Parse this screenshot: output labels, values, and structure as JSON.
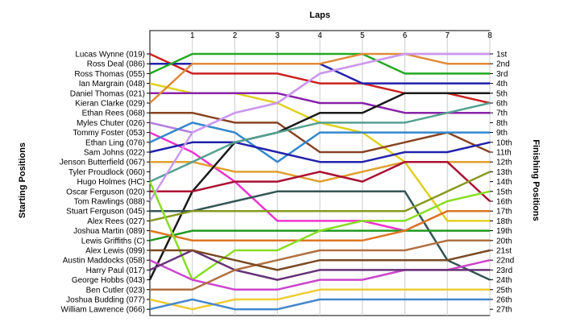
{
  "chart_data": {
    "type": "line",
    "title": "",
    "xlabel": "Laps",
    "y_left_label": "Starting Positions",
    "y_right_label": "Finishing Positions",
    "x": [
      0,
      1,
      2,
      3,
      4,
      5,
      6,
      7,
      8
    ],
    "x_tick_labels": [
      "1",
      "2",
      "3",
      "4",
      "5",
      "6",
      "7",
      "8"
    ],
    "ylim": [
      1,
      27
    ],
    "y_inverted": true,
    "grid": "vertical",
    "starting_labels": [
      "Lucas Wynne (019)",
      "Ross Deal (086)",
      "Ross Thomas (055)",
      "Ian Margrain (048)",
      "Daniel Thomas (021)",
      "Kieran Clarke (029)",
      "Ethan Rees (068)",
      "Myles Chuter (026)",
      "Tommy Foster (053)",
      "Ethan Ling (076)",
      "Sam Johns (022)",
      "Jenson Butterfield (067)",
      "Tyler Proudlock (060)",
      "Hugo Holmes (HC)",
      "Oscar Ferguson (020)",
      "Tom Rawlings (088)",
      "Stuart Ferguson (045)",
      "Alex Rees (027)",
      "Joshua Martin (089)",
      "Lewis Griffiths (C)",
      "Alex Lewis (099)",
      "Austin Maddocks (058)",
      "Harry Paul (017)",
      "George Hobbs (043)",
      "Ben Cutler (023)",
      "Joshua Budding (077)",
      "William Lawrence (066)"
    ],
    "finishing_labels": [
      "1st",
      "2nd",
      "3rd",
      "4th",
      "5th",
      "6th",
      "7th",
      "8th",
      "9th",
      "10th",
      "11th",
      "12th",
      "13th",
      "14th",
      "15th",
      "16th",
      "17th",
      "18th",
      "19th",
      "20th",
      "21st",
      "22nd",
      "23rd",
      "24th",
      "25th",
      "26th",
      "27th"
    ],
    "series": [
      {
        "color": "#cc2222",
        "values": [
          1,
          3,
          3,
          3,
          4,
          4,
          5,
          5,
          6
        ]
      },
      {
        "color": "#2222aa",
        "values": [
          2,
          2,
          2,
          2,
          2,
          4,
          4,
          4,
          4
        ]
      },
      {
        "color": "#22aa22",
        "values": [
          3,
          1,
          1,
          1,
          1,
          1,
          3,
          3,
          3
        ]
      },
      {
        "color": "#e0d020",
        "values": [
          4,
          5,
          5,
          6,
          8,
          9,
          12,
          18,
          18
        ]
      },
      {
        "color": "#8822aa",
        "values": [
          5,
          5,
          5,
          5,
          6,
          6,
          7,
          7,
          7
        ]
      },
      {
        "color": "#e08a3a",
        "values": [
          6,
          2,
          2,
          2,
          2,
          1,
          1,
          2,
          2
        ]
      },
      {
        "color": "#884422",
        "values": [
          7,
          7,
          8,
          8,
          11,
          11,
          10,
          9,
          11
        ]
      },
      {
        "color": "#b07fdb",
        "values": [
          8,
          9,
          7,
          6,
          3,
          2,
          1,
          1,
          1
        ]
      },
      {
        "color": "#ee33cc",
        "values": [
          9,
          11,
          14,
          18,
          18,
          18,
          19,
          17,
          17
        ]
      },
      {
        "color": "#3388cc",
        "values": [
          10,
          8,
          9,
          12,
          9,
          9,
          9,
          9,
          9
        ]
      },
      {
        "color": "#2222aa",
        "values": [
          11,
          10,
          10,
          11,
          12,
          12,
          11,
          11,
          10
        ]
      },
      {
        "color": "#e0a030",
        "values": [
          12,
          12,
          13,
          13,
          14,
          13,
          12,
          12,
          12
        ]
      },
      {
        "color": "#1a1a1a",
        "values": [
          24,
          15,
          10,
          9,
          7,
          7,
          5,
          5,
          5
        ]
      },
      {
        "color": "#55a090",
        "values": [
          14,
          12,
          10,
          9,
          8,
          8,
          8,
          7,
          6
        ]
      },
      {
        "color": "#aa1133",
        "values": [
          15,
          15,
          14,
          14,
          13,
          14,
          12,
          12,
          16
        ]
      },
      {
        "color": "#cc99ee",
        "values": [
          16,
          9,
          7,
          6,
          3,
          2,
          1,
          1,
          1
        ]
      },
      {
        "color": "#335555",
        "values": [
          17,
          17,
          16,
          15,
          15,
          15,
          15,
          22,
          24
        ]
      },
      {
        "color": "#889922",
        "values": [
          18,
          17,
          17,
          17,
          17,
          17,
          17,
          15,
          13
        ]
      },
      {
        "color": "#229922",
        "values": [
          20,
          19,
          19,
          19,
          19,
          19,
          19,
          19,
          19
        ]
      },
      {
        "color": "#dd7722",
        "values": [
          19,
          20,
          20,
          20,
          20,
          20,
          19,
          17,
          17
        ]
      },
      {
        "color": "#88dd22",
        "values": [
          14,
          24,
          21,
          21,
          19,
          18,
          18,
          16,
          15
        ]
      },
      {
        "color": "#cc44cc",
        "values": [
          22,
          24,
          25,
          25,
          24,
          24,
          23,
          23,
          22
        ]
      },
      {
        "color": "#663377",
        "values": [
          23,
          21,
          23,
          24,
          23,
          23,
          23,
          23,
          23
        ]
      },
      {
        "color": "#b07040",
        "values": [
          25,
          25,
          23,
          22,
          21,
          21,
          21,
          20,
          20
        ]
      },
      {
        "color": "#7a4a22",
        "values": [
          21,
          21,
          22,
          23,
          22,
          22,
          22,
          22,
          21
        ]
      },
      {
        "color": "#eecc33",
        "values": [
          26,
          27,
          26,
          26,
          25,
          25,
          25,
          25,
          25
        ]
      },
      {
        "color": "#4488cc",
        "values": [
          27,
          26,
          27,
          27,
          26,
          26,
          26,
          26,
          26
        ]
      }
    ]
  }
}
